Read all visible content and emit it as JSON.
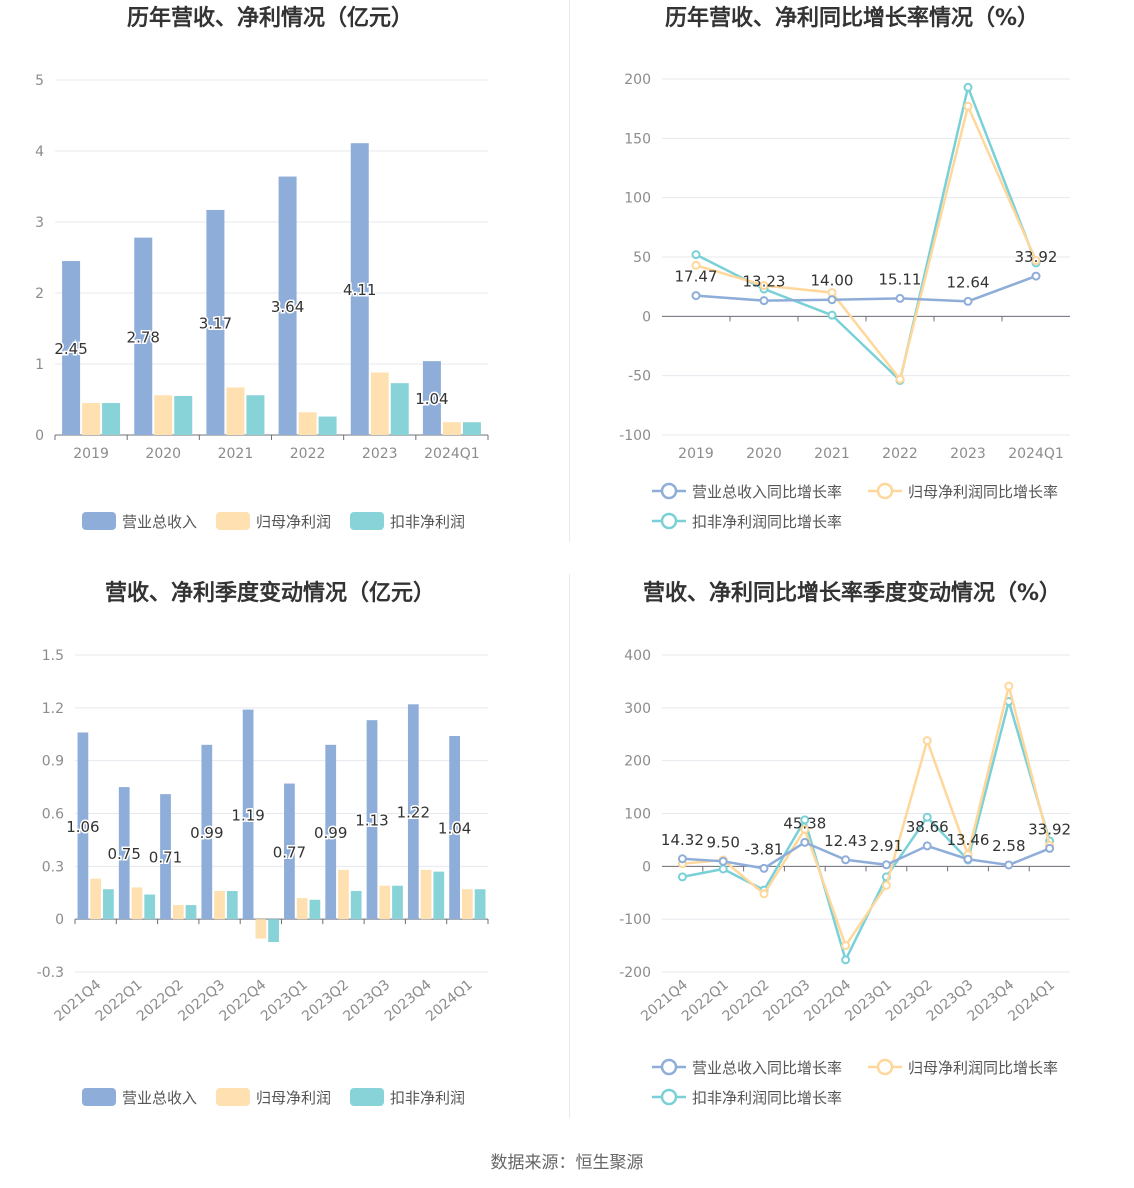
{
  "source": "数据来源：恒生聚源",
  "colors": {
    "revenue": "#8eadd9",
    "net": "#ffe0b0",
    "deducted": "#88d3d8",
    "net_line": "#ffd79a",
    "deducted_line": "#79d1d7"
  },
  "charts": [
    {
      "title": "历年营收、净利情况（亿元）",
      "chart_data": {
        "type": "bar",
        "categories": [
          "2019",
          "2020",
          "2021",
          "2022",
          "2023",
          "2024Q1"
        ],
        "ylim": [
          0,
          5
        ],
        "yticks": [
          0,
          1,
          2,
          3,
          4,
          5
        ],
        "series": [
          {
            "name": "营业总收入",
            "values": [
              2.45,
              2.78,
              3.17,
              3.64,
              4.11,
              1.04
            ]
          },
          {
            "name": "归母净利润",
            "values": [
              0.45,
              0.56,
              0.67,
              0.32,
              0.88,
              0.18
            ]
          },
          {
            "name": "扣非净利润",
            "values": [
              0.45,
              0.55,
              0.56,
              0.26,
              0.73,
              0.18
            ]
          }
        ],
        "data_labels": [
          "2.45",
          "2.78",
          "3.17",
          "3.64",
          "4.11",
          "1.04"
        ]
      }
    },
    {
      "title": "历年营收、净利同比增长率情况（%）",
      "chart_data": {
        "type": "line",
        "categories": [
          "2019",
          "2020",
          "2021",
          "2022",
          "2023",
          "2024Q1"
        ],
        "ylim": [
          -100,
          200
        ],
        "yticks": [
          -100,
          -50,
          0,
          50,
          100,
          150,
          200
        ],
        "series": [
          {
            "name": "营业总收入同比增长率",
            "values": [
              17.47,
              13.23,
              14.0,
              15.11,
              12.64,
              33.92
            ]
          },
          {
            "name": "归母净利润同比增长率",
            "values": [
              43,
              26,
              20,
              -53,
              177,
              47
            ]
          },
          {
            "name": "扣非净利润同比增长率",
            "values": [
              52,
              23,
              1,
              -54,
              193,
              45
            ]
          }
        ],
        "data_labels": [
          "17.47",
          "13.23",
          "14.00",
          "15.11",
          "12.64",
          "33.92"
        ]
      }
    },
    {
      "title": "营收、净利季度变动情况（亿元）",
      "chart_data": {
        "type": "bar",
        "categories": [
          "2021Q4",
          "2022Q1",
          "2022Q2",
          "2022Q3",
          "2022Q4",
          "2023Q1",
          "2023Q2",
          "2023Q3",
          "2023Q4",
          "2024Q1"
        ],
        "ylim": [
          -0.3,
          1.5
        ],
        "yticks": [
          -0.3,
          0,
          0.3,
          0.6,
          0.9,
          1.2,
          1.5
        ],
        "series": [
          {
            "name": "营业总收入",
            "values": [
              1.06,
              0.75,
              0.71,
              0.99,
              1.19,
              0.77,
              0.99,
              1.13,
              1.22,
              1.04
            ]
          },
          {
            "name": "归母净利润",
            "values": [
              0.23,
              0.18,
              0.08,
              0.16,
              -0.11,
              0.12,
              0.28,
              0.19,
              0.28,
              0.17
            ]
          },
          {
            "name": "扣非净利润",
            "values": [
              0.17,
              0.14,
              0.08,
              0.16,
              -0.13,
              0.11,
              0.16,
              0.19,
              0.27,
              0.17
            ]
          }
        ],
        "data_labels": [
          "1.06",
          "0.75",
          "0.71",
          "0.99",
          "1.19",
          "0.77",
          "0.99",
          "1.13",
          "1.22",
          "1.04"
        ]
      }
    },
    {
      "title": "营收、净利同比增长率季度变动情况（%）",
      "chart_data": {
        "type": "line",
        "categories": [
          "2021Q4",
          "2022Q1",
          "2022Q2",
          "2022Q3",
          "2022Q4",
          "2023Q1",
          "2023Q2",
          "2023Q3",
          "2023Q4",
          "2024Q1"
        ],
        "ylim": [
          -200,
          400
        ],
        "yticks": [
          -200,
          -100,
          0,
          100,
          200,
          300,
          400
        ],
        "series": [
          {
            "name": "营业总收入同比增长率",
            "values": [
              14.32,
              9.5,
              -3.81,
              45.38,
              12.43,
              2.91,
              38.66,
              13.46,
              2.58,
              33.92
            ]
          },
          {
            "name": "归母净利润同比增长率",
            "values": [
              5,
              12,
              -52,
              70,
              -150,
              -36,
              238,
              22,
              341,
              40
            ]
          },
          {
            "name": "扣非净利润同比增长率",
            "values": [
              -20,
              -5,
              -45,
              88,
              -177,
              -20,
              93,
              12,
              312,
              48
            ]
          }
        ],
        "data_labels": [
          "14.32",
          "9.50",
          "-3.81",
          "45.38",
          "12.43",
          "2.91",
          "38.66",
          "13.46",
          "2.58",
          "33.92"
        ]
      }
    }
  ]
}
